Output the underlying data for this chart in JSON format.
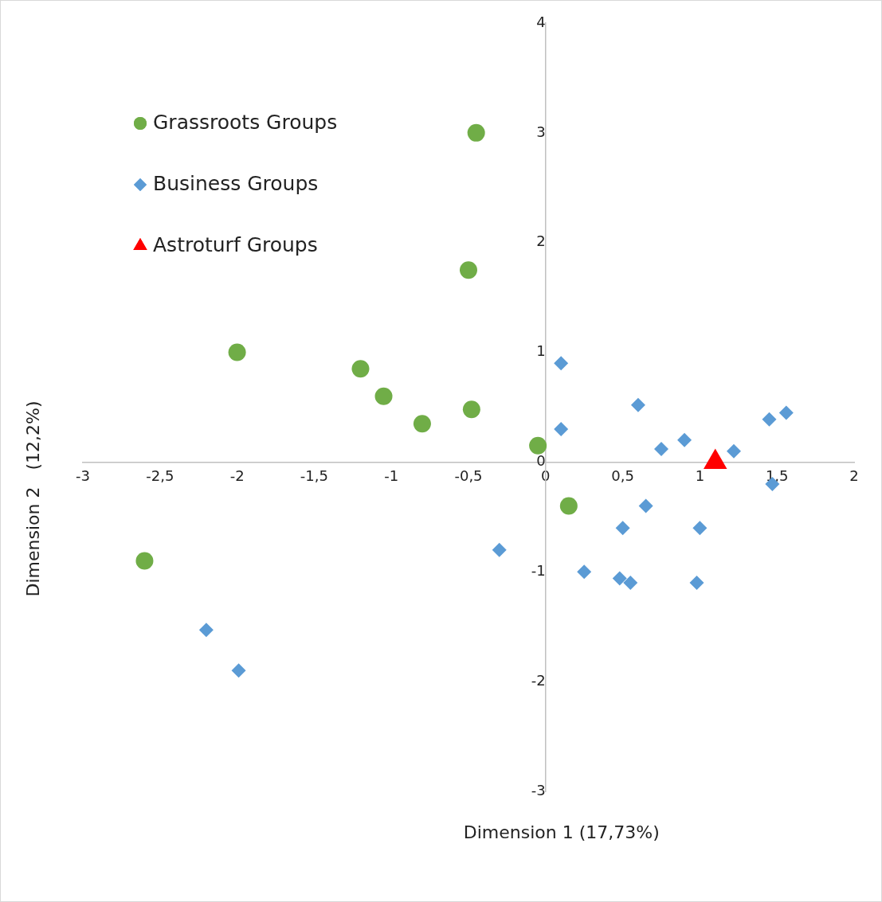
{
  "chart_data": {
    "type": "scatter",
    "xlabel": "Dimension 1 (17,73%)",
    "ylabel": "Dimension 2   (12,2%)",
    "xlim": [
      -3,
      2
    ],
    "ylim": [
      -3,
      4
    ],
    "xticks": [
      {
        "value": -3,
        "label": "-3"
      },
      {
        "value": -2.5,
        "label": "-2,5"
      },
      {
        "value": -2,
        "label": "-2"
      },
      {
        "value": -1.5,
        "label": "-1,5"
      },
      {
        "value": -1,
        "label": "-1"
      },
      {
        "value": -0.5,
        "label": "-0,5"
      },
      {
        "value": 0,
        "label": "0"
      },
      {
        "value": 0.5,
        "label": "0,5"
      },
      {
        "value": 1,
        "label": "1"
      },
      {
        "value": 1.5,
        "label": "1,5"
      },
      {
        "value": 2,
        "label": "2"
      }
    ],
    "yticks": [
      -3,
      -2,
      -1,
      0,
      1,
      2,
      3,
      4
    ],
    "grid": false,
    "legend": "top left",
    "series": [
      {
        "name": "Grassroots Groups",
        "color": "#70ad47",
        "marker": "circle",
        "x": [
          -0.45,
          -0.5,
          -2.0,
          -1.2,
          -1.05,
          -0.8,
          -0.48,
          -0.05,
          0.15,
          -2.6
        ],
        "values": [
          3.0,
          1.75,
          1.0,
          0.85,
          0.6,
          0.35,
          0.48,
          0.15,
          -0.4,
          -0.9
        ]
      },
      {
        "name": "Business Groups",
        "color": "#5b9bd5",
        "marker": "diamond",
        "x": [
          0.1,
          0.1,
          0.6,
          0.75,
          0.9,
          1.22,
          1.45,
          1.56,
          1.47,
          0.65,
          0.5,
          1.0,
          -0.3,
          0.25,
          0.48,
          0.55,
          0.98,
          -2.2,
          -1.99
        ],
        "values": [
          0.9,
          0.3,
          0.52,
          0.12,
          0.2,
          0.1,
          0.39,
          0.45,
          -0.2,
          -0.4,
          -0.6,
          -0.6,
          -0.8,
          -1.0,
          -1.06,
          -1.1,
          -1.1,
          -1.53,
          -1.9
        ]
      },
      {
        "name": "Astroturf Groups",
        "color": "#ff0000",
        "marker": "triangle",
        "x": [
          1.1
        ],
        "values": [
          0
        ]
      }
    ]
  }
}
